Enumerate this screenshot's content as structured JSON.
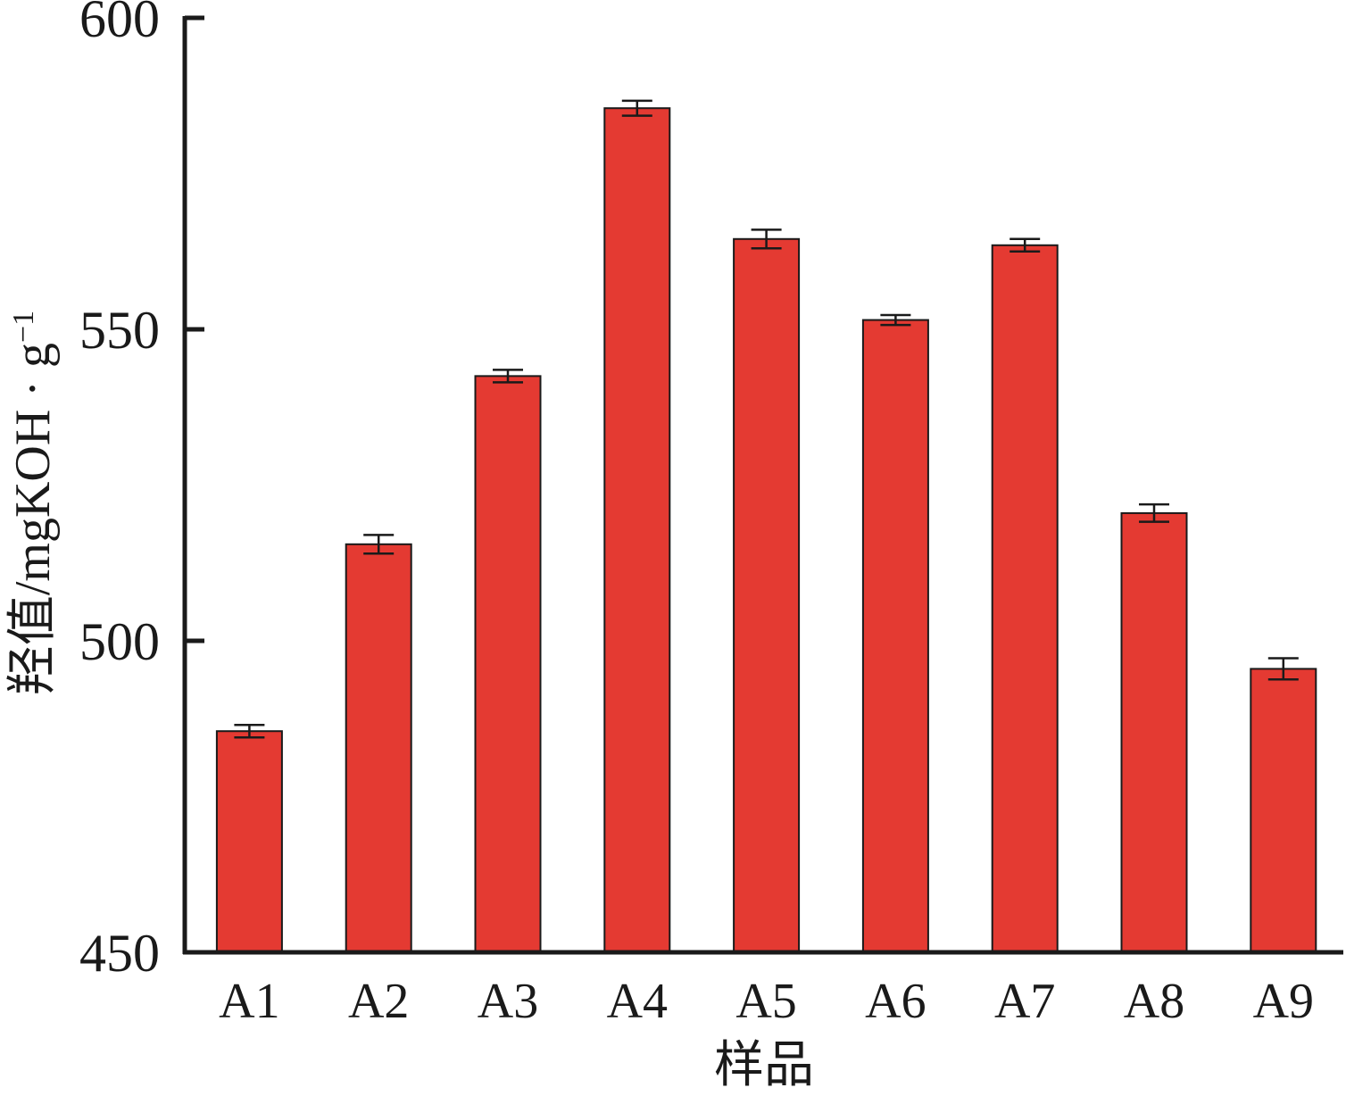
{
  "chart_data": {
    "type": "bar",
    "title": "",
    "xlabel": "样品",
    "ylabel": {
      "main": "羟值/mgKOH · g",
      "superscript": "−1"
    },
    "ylim": [
      450,
      600
    ],
    "yticks": [
      "450",
      "500",
      "550",
      "600"
    ],
    "categories": [
      "A1",
      "A2",
      "A3",
      "A4",
      "A5",
      "A6",
      "A7",
      "A8",
      "A9"
    ],
    "values": [
      485.5,
      515.5,
      542.5,
      585.5,
      564.5,
      551.5,
      563.5,
      520.5,
      495.5
    ],
    "errors": [
      1,
      1.5,
      1,
      1.2,
      1.5,
      0.8,
      1,
      1.4,
      1.7
    ],
    "grid": false,
    "legend": "none",
    "colors": {
      "bar_fill": "#e43a32",
      "bar_stroke": "#1a1a1a",
      "axis": "#1a1a1a"
    }
  }
}
